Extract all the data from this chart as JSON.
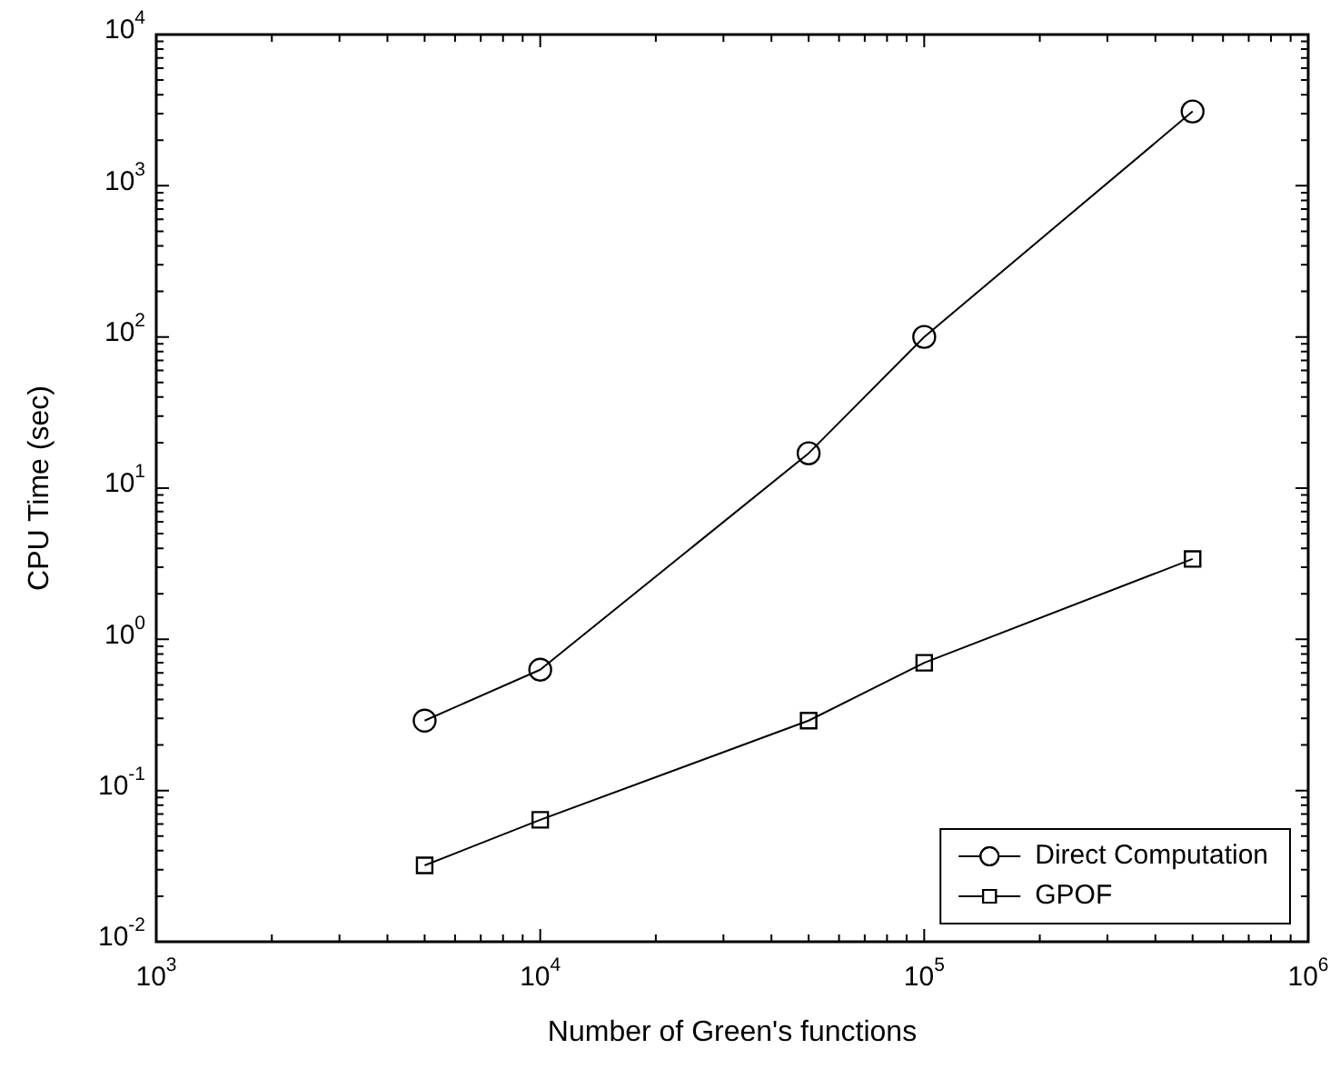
{
  "chart_data": {
    "type": "line",
    "xlabel": "Number of Green's functions",
    "ylabel": "CPU Time (sec)",
    "x": [
      5000,
      10000,
      50000,
      100000,
      500000
    ],
    "series": [
      {
        "name": "Direct Computation",
        "color": "#000000",
        "marker": "circle",
        "values": [
          0.29,
          0.63,
          17,
          100,
          3100
        ]
      },
      {
        "name": "GPOF",
        "color": "#000000",
        "marker": "square",
        "values": [
          0.032,
          0.064,
          0.29,
          0.7,
          3.4
        ]
      }
    ],
    "log": "xy",
    "xlim": [
      1000,
      1000000
    ],
    "ylim": [
      0.01,
      10000
    ],
    "xticks": [
      {
        "value": 1000,
        "label": "10$^{3}$"
      },
      {
        "value": 10000,
        "label": "10$^{4}$"
      },
      {
        "value": 100000,
        "label": "10$^{5}$"
      },
      {
        "value": 1000000,
        "label": "10$^{6}$"
      }
    ],
    "yticks": [
      {
        "value": 0.01,
        "label": "10$^{-2}$"
      },
      {
        "value": 0.1,
        "label": "10$^{-1}$"
      },
      {
        "value": 1,
        "label": "10$^{0}$"
      },
      {
        "value": 10,
        "label": "10$^{1}$"
      },
      {
        "value": 100,
        "label": "10$^{2}$"
      },
      {
        "value": 1000,
        "label": "10$^{3}$"
      },
      {
        "value": 10000,
        "label": "10$^{4}$"
      }
    ],
    "grid": false,
    "legend": "bottom right",
    "line_style": "solid"
  }
}
